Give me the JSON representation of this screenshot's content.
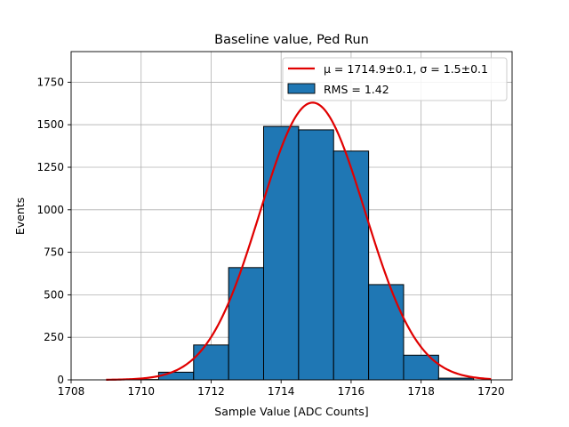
{
  "chart_data": {
    "type": "bar",
    "title": "Baseline value, Ped Run",
    "xlabel": "Sample Value [ADC Counts]",
    "ylabel": "Events",
    "xlim": [
      1708,
      1720.6
    ],
    "ylim": [
      0,
      1930
    ],
    "grid": true,
    "legend_position": "top-right",
    "x_ticks": [
      1708,
      1710,
      1712,
      1714,
      1716,
      1718,
      1720
    ],
    "y_ticks": [
      0,
      250,
      500,
      750,
      1000,
      1250,
      1500,
      1750
    ],
    "histogram": {
      "name": "RMS = 1.42",
      "color": "#1f77b4",
      "bin_edges": [
        1708.5,
        1709.5,
        1710.5,
        1711.5,
        1712.5,
        1713.5,
        1714.5,
        1715.5,
        1716.5,
        1717.5,
        1718.5,
        1719.5
      ],
      "counts": [
        0,
        2,
        45,
        205,
        660,
        1490,
        1470,
        1345,
        560,
        145,
        10
      ]
    },
    "fit": {
      "name": "μ = 1714.9±0.1, σ = 1.5±0.1",
      "color": "#e00000",
      "mu": 1714.9,
      "sigma": 1.5,
      "amplitude": 1630,
      "x_range": [
        1709,
        1720
      ]
    }
  }
}
